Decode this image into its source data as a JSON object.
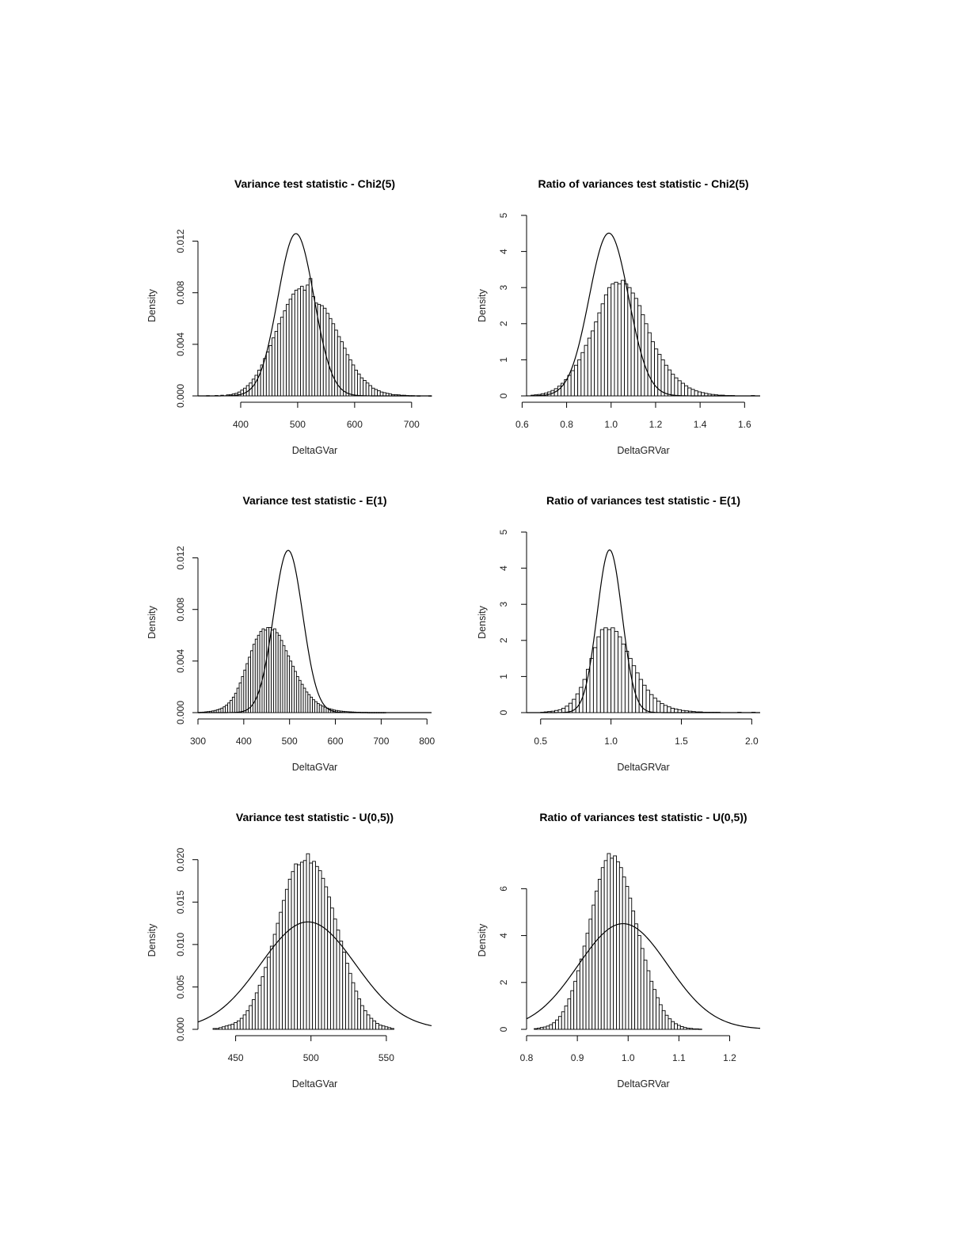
{
  "chart_data": [
    {
      "type": "bar",
      "title": "Variance test statistic - Chi2(5)",
      "xlabel": "DeltaGVar",
      "ylabel": "Density",
      "xlim": [
        325,
        735
      ],
      "ylim": [
        0,
        0.014
      ],
      "x_ticks": [
        "400",
        "500",
        "600",
        "700"
      ],
      "y_ticks": [
        "0.000",
        "0.004",
        "0.008",
        "0.012"
      ],
      "grid": false,
      "histogram": {
        "bin_start": 340,
        "bin_width": 5,
        "density": [
          2e-05,
          0,
          0,
          3e-05,
          0,
          5e-05,
          0,
          8e-05,
          0.0001,
          0.00015,
          0.0002,
          0.0003,
          0.00045,
          0.0006,
          0.0008,
          0.001,
          0.0013,
          0.0016,
          0.002,
          0.0024,
          0.0029,
          0.0034,
          0.0039,
          0.0045,
          0.005,
          0.0056,
          0.0061,
          0.0066,
          0.0071,
          0.0075,
          0.0079,
          0.0082,
          0.0083,
          0.0085,
          0.0082,
          0.0086,
          0.0091,
          0.0077,
          0.0072,
          0.0071,
          0.007,
          0.0068,
          0.0064,
          0.006,
          0.0056,
          0.0051,
          0.0046,
          0.0042,
          0.0037,
          0.0032,
          0.0028,
          0.0024,
          0.002,
          0.0017,
          0.0014,
          0.0012,
          0.001,
          0.0008,
          0.0006,
          0.0005,
          0.0004,
          0.0003,
          0.00025,
          0.0002,
          0.00015,
          0.0001,
          0.0001,
          8e-05,
          5e-05,
          5e-05,
          3e-05,
          2e-05,
          2e-05,
          0,
          1e-05,
          0,
          0,
          0,
          1e-05
        ]
      },
      "reference_curve": {
        "type": "normal",
        "mean": 497,
        "sd": 31.7
      }
    },
    {
      "type": "bar",
      "title": "Ratio of variances test statistic - Chi2(5)",
      "xlabel": "DeltaGRVar",
      "ylabel": "Density",
      "xlim": [
        0.62,
        1.67
      ],
      "ylim": [
        0,
        5
      ],
      "x_ticks": [
        "0.6",
        "0.8",
        "1.0",
        "1.2",
        "1.4",
        "1.6"
      ],
      "y_ticks": [
        "0",
        "1",
        "2",
        "3",
        "4",
        "5"
      ],
      "grid": false,
      "histogram": {
        "bin_start": 0.64,
        "bin_width": 0.015,
        "density": [
          0.02,
          0.03,
          0.04,
          0.06,
          0.08,
          0.11,
          0.15,
          0.2,
          0.27,
          0.35,
          0.45,
          0.57,
          0.7,
          0.85,
          1.0,
          1.2,
          1.4,
          1.6,
          1.8,
          2.05,
          2.3,
          2.55,
          2.8,
          3.0,
          3.1,
          3.15,
          3.1,
          3.2,
          3.1,
          3.0,
          2.85,
          2.7,
          2.5,
          2.25,
          2.0,
          1.75,
          1.5,
          1.3,
          1.15,
          1.0,
          0.85,
          0.72,
          0.6,
          0.5,
          0.42,
          0.35,
          0.28,
          0.22,
          0.18,
          0.14,
          0.11,
          0.09,
          0.07,
          0.05,
          0.04,
          0.03,
          0.02,
          0.02,
          0.01,
          0.01,
          0.01,
          0,
          0,
          0,
          0,
          0,
          0.01
        ]
      },
      "reference_curve": {
        "type": "normal",
        "mean": 0.99,
        "sd": 0.0885
      }
    },
    {
      "type": "bar",
      "title": "Variance test statistic - E(1)",
      "xlabel": "DeltaGVar",
      "ylabel": "Density",
      "xlim": [
        300,
        810
      ],
      "ylim": [
        0,
        0.014
      ],
      "x_ticks": [
        "300",
        "400",
        "500",
        "600",
        "700",
        "800"
      ],
      "y_ticks": [
        "0.000",
        "0.004",
        "0.008",
        "0.012"
      ],
      "grid": false,
      "histogram": {
        "bin_start": 300,
        "bin_width": 5,
        "density": [
          2e-05,
          3e-05,
          4e-05,
          6e-05,
          8e-05,
          0.0001,
          0.00013,
          0.00017,
          0.00022,
          0.00028,
          0.00035,
          0.00045,
          0.00058,
          0.00075,
          0.00095,
          0.0012,
          0.0015,
          0.0019,
          0.0023,
          0.0028,
          0.0033,
          0.0038,
          0.0043,
          0.0048,
          0.0053,
          0.0057,
          0.006,
          0.0063,
          0.0065,
          0.0064,
          0.0066,
          0.0066,
          0.0064,
          0.0065,
          0.0062,
          0.006,
          0.0056,
          0.0052,
          0.0048,
          0.0044,
          0.004,
          0.0036,
          0.0032,
          0.0028,
          0.0025,
          0.0022,
          0.0019,
          0.0016,
          0.0014,
          0.0012,
          0.001,
          0.00085,
          0.0007,
          0.0006,
          0.0005,
          0.00042,
          0.00035,
          0.0003,
          0.00025,
          0.0002,
          0.00017,
          0.00014,
          0.00012,
          0.0001,
          8e-05,
          7e-05,
          6e-05,
          5e-05,
          4e-05,
          3e-05,
          3e-05,
          2e-05,
          2e-05,
          2e-05,
          1e-05,
          1e-05,
          1e-05,
          1e-05,
          1e-05,
          1e-05,
          1e-05,
          1e-05
        ]
      },
      "reference_curve": {
        "type": "normal",
        "mean": 497,
        "sd": 31.7
      }
    },
    {
      "type": "bar",
      "title": "Ratio of variances test statistic - E(1)",
      "xlabel": "DeltaGRVar",
      "ylabel": "Density",
      "xlim": [
        0.4,
        2.06
      ],
      "ylim": [
        0,
        5
      ],
      "x_ticks": [
        "0.5",
        "1.0",
        "1.5",
        "2.0"
      ],
      "y_ticks": [
        "0",
        "1",
        "2",
        "3",
        "4",
        "5"
      ],
      "grid": false,
      "histogram": {
        "bin_start": 0.5,
        "bin_width": 0.025,
        "density": [
          0.01,
          0.02,
          0.03,
          0.04,
          0.06,
          0.08,
          0.12,
          0.18,
          0.26,
          0.37,
          0.52,
          0.7,
          0.92,
          1.2,
          1.5,
          1.8,
          2.1,
          2.3,
          2.35,
          2.3,
          2.35,
          2.25,
          2.1,
          1.9,
          1.7,
          1.5,
          1.3,
          1.1,
          0.92,
          0.76,
          0.62,
          0.5,
          0.4,
          0.32,
          0.25,
          0.2,
          0.16,
          0.12,
          0.1,
          0.08,
          0.06,
          0.05,
          0.04,
          0.03,
          0.02,
          0.02,
          0.01,
          0.01,
          0.01,
          0.01,
          0.01,
          0,
          0,
          0,
          0,
          0,
          0.01,
          0,
          0,
          0,
          0.01
        ]
      },
      "reference_curve": {
        "type": "normal",
        "mean": 0.99,
        "sd": 0.0885
      }
    },
    {
      "type": "bar",
      "title": "Variance test statistic - U(0,5))",
      "xlabel": "DeltaGVar",
      "ylabel": "Density",
      "xlim": [
        425,
        580
      ],
      "ylim": [
        0,
        0.021
      ],
      "x_ticks": [
        "450",
        "500",
        "550"
      ],
      "y_ticks": [
        "0.000",
        "0.005",
        "0.010",
        "0.015",
        "0.020"
      ],
      "grid": false,
      "histogram": {
        "bin_start": 435,
        "bin_width": 2,
        "density": [
          0.0001,
          0.0001,
          0.0002,
          0.0003,
          0.0004,
          0.0005,
          0.0006,
          0.0008,
          0.001,
          0.0013,
          0.0017,
          0.0022,
          0.0028,
          0.0035,
          0.0043,
          0.0052,
          0.0062,
          0.0073,
          0.0085,
          0.0098,
          0.0112,
          0.0125,
          0.0138,
          0.0152,
          0.0165,
          0.0177,
          0.0186,
          0.0195,
          0.0194,
          0.0197,
          0.0199,
          0.0207,
          0.0196,
          0.0198,
          0.0192,
          0.0187,
          0.0178,
          0.0168,
          0.0156,
          0.0143,
          0.013,
          0.0117,
          0.0104,
          0.0091,
          0.0078,
          0.0066,
          0.0055,
          0.0045,
          0.0036,
          0.0028,
          0.0022,
          0.0017,
          0.0013,
          0.001,
          0.0007,
          0.0005,
          0.0004,
          0.0003,
          0.0002,
          0.0001
        ]
      },
      "reference_curve": {
        "type": "normal",
        "mean": 498,
        "sd": 31.5
      }
    },
    {
      "type": "bar",
      "title": "Ratio of variances test statistic - U(0,5))",
      "xlabel": "DeltaGRVar",
      "ylabel": "Density",
      "xlim": [
        0.8,
        1.26
      ],
      "ylim": [
        0,
        7.6
      ],
      "x_ticks": [
        "0.8",
        "0.9",
        "1.0",
        "1.1",
        "1.2"
      ],
      "y_ticks": [
        "0",
        "2",
        "4",
        "6"
      ],
      "grid": false,
      "histogram": {
        "bin_start": 0.815,
        "bin_width": 0.006,
        "density": [
          0.03,
          0.05,
          0.08,
          0.1,
          0.14,
          0.2,
          0.28,
          0.4,
          0.55,
          0.75,
          1.0,
          1.3,
          1.65,
          2.05,
          2.5,
          3.0,
          3.55,
          4.1,
          4.7,
          5.3,
          5.9,
          6.4,
          6.9,
          7.2,
          7.5,
          7.3,
          7.4,
          7.15,
          6.9,
          6.5,
          6.1,
          5.6,
          5.05,
          4.5,
          4.0,
          3.45,
          2.95,
          2.5,
          2.05,
          1.7,
          1.35,
          1.05,
          0.8,
          0.6,
          0.45,
          0.33,
          0.24,
          0.17,
          0.12,
          0.08,
          0.05,
          0.04,
          0.02,
          0.02,
          0.01
        ]
      },
      "reference_curve": {
        "type": "normal",
        "mean": 0.99,
        "sd": 0.0885
      }
    }
  ]
}
